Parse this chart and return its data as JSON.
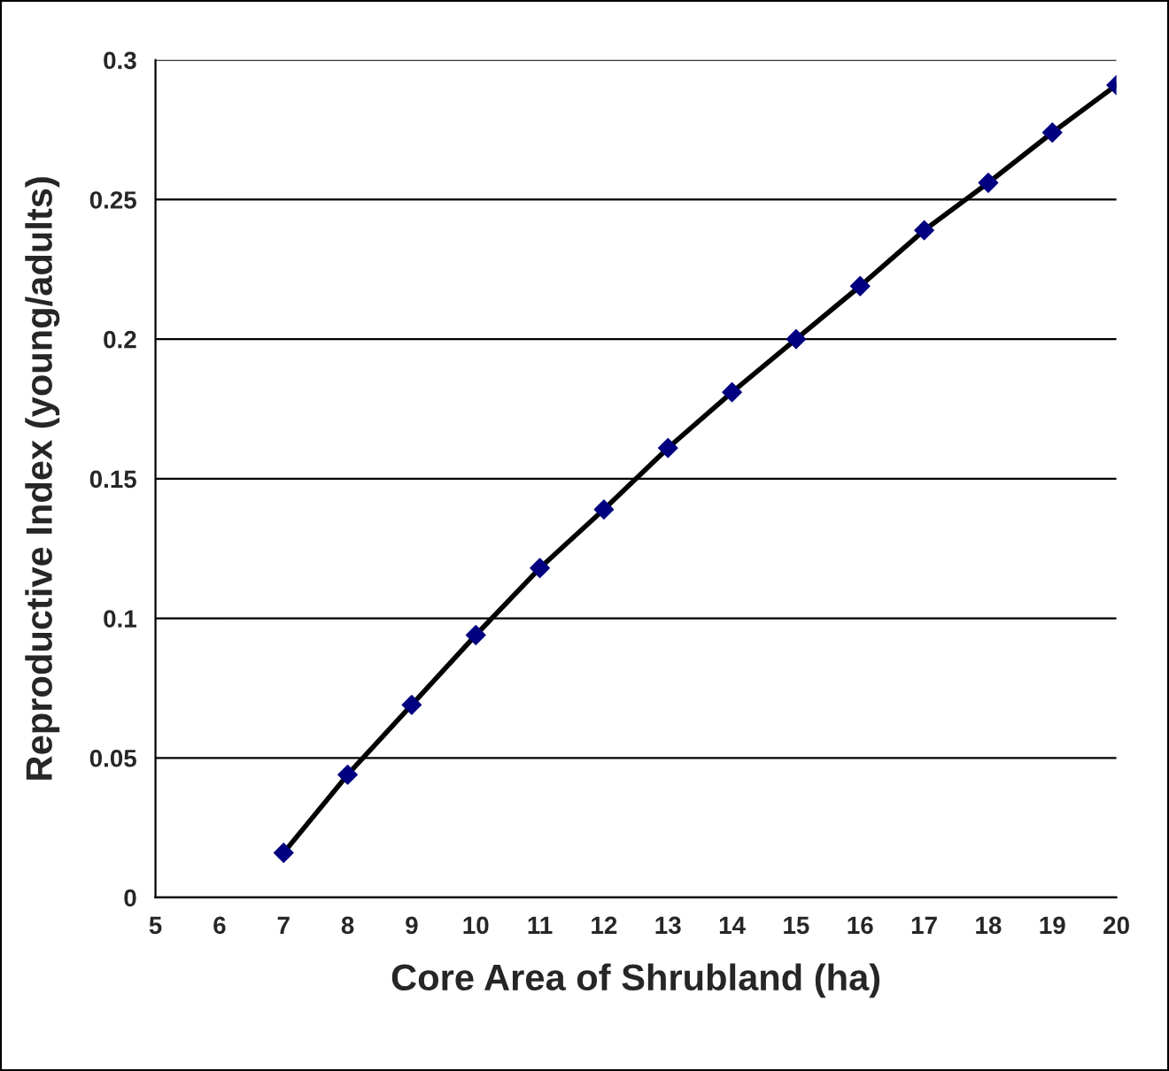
{
  "chart_data": {
    "type": "scatter",
    "xlabel": "Core Area of Shrubland (ha)",
    "ylabel": "Reproductive Index (young/adults)",
    "x": [
      7,
      8,
      9,
      10,
      11,
      12,
      13,
      14,
      15,
      16,
      17,
      18,
      19,
      20
    ],
    "series": [
      {
        "color": "#000080",
        "marker": "diamond",
        "values": [
          0.016,
          0.044,
          0.069,
          0.094,
          0.118,
          0.139,
          0.161,
          0.181,
          0.2,
          0.219,
          0.239,
          0.256,
          0.274,
          0.291
        ]
      },
      {
        "type": "line",
        "color": "#000000",
        "marker": "none",
        "line_style": "solid",
        "values": [
          0.016,
          0.044,
          0.069,
          0.094,
          0.118,
          0.139,
          0.161,
          0.181,
          0.2,
          0.219,
          0.239,
          0.256,
          0.274,
          0.291
        ]
      }
    ],
    "xlim": [
      5,
      20
    ],
    "xticks": [
      5,
      6,
      7,
      8,
      9,
      10,
      11,
      12,
      13,
      14,
      15,
      16,
      17,
      18,
      19,
      20
    ],
    "ylim": [
      0,
      0.3
    ],
    "yticks": [
      0,
      0.05,
      0.1,
      0.15,
      0.2,
      0.25,
      0.3
    ],
    "grid": "y"
  }
}
